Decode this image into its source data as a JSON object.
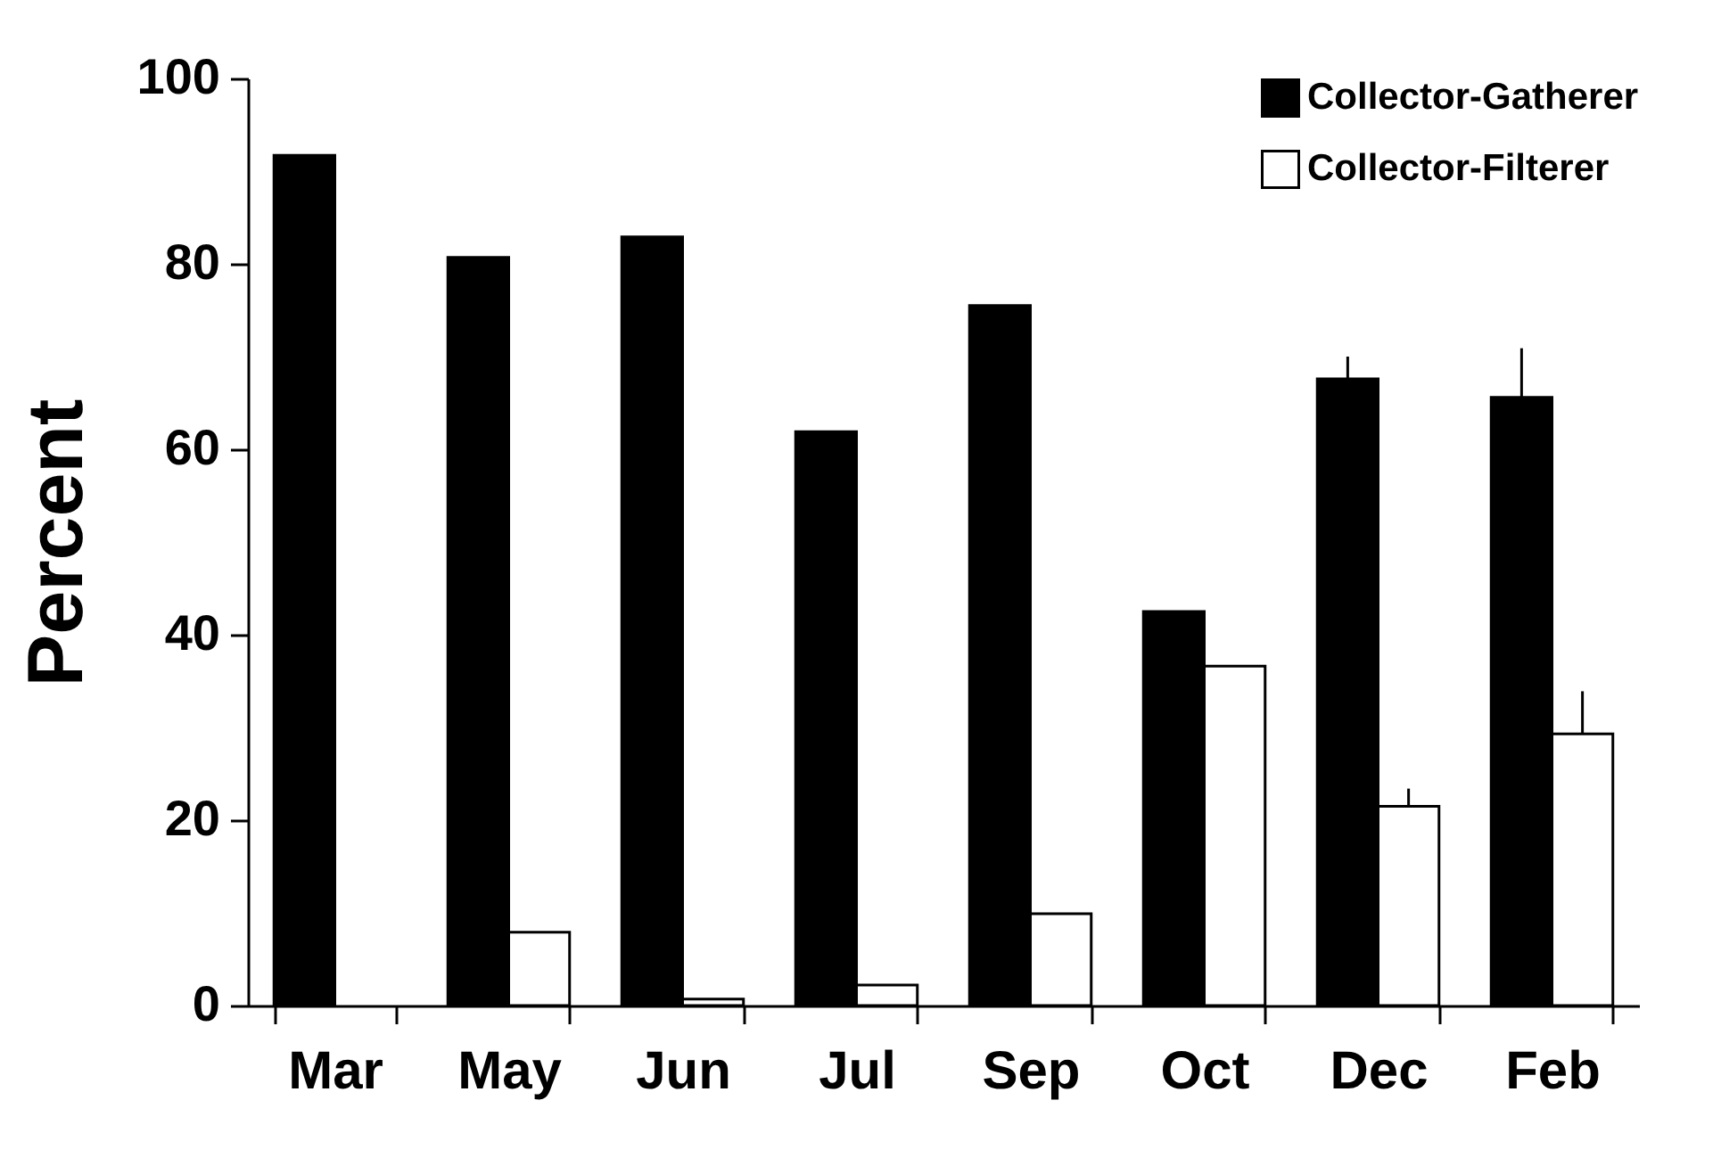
{
  "chart_data": {
    "type": "bar",
    "ylabel": "Percent",
    "categories": [
      "Mar",
      "May",
      "Jun",
      "Jul",
      "Sep",
      "Oct",
      "Dec",
      "Feb"
    ],
    "series": [
      {
        "name": "Collector-Gatherer",
        "color": "#000000",
        "values": [
          91.7,
          80.7,
          82.9,
          61.9,
          75.5,
          42.5,
          67.6,
          65.6
        ],
        "errors": [
          null,
          null,
          null,
          null,
          null,
          null,
          [
            67.6,
            70.0
          ],
          [
            65.6,
            70.9
          ]
        ]
      },
      {
        "name": "Collector-Filterer",
        "color": "#ffffff",
        "values": [
          null,
          7.9,
          0.7,
          2.2,
          9.9,
          36.6,
          21.5,
          29.3
        ],
        "errors": [
          null,
          null,
          null,
          null,
          null,
          null,
          [
            21.5,
            23.4
          ],
          [
            29.3,
            33.9
          ]
        ]
      }
    ],
    "ylim": [
      0,
      100
    ],
    "yticks": [
      0,
      20,
      40,
      60,
      80,
      100
    ],
    "grid": false,
    "legend": "top right"
  }
}
